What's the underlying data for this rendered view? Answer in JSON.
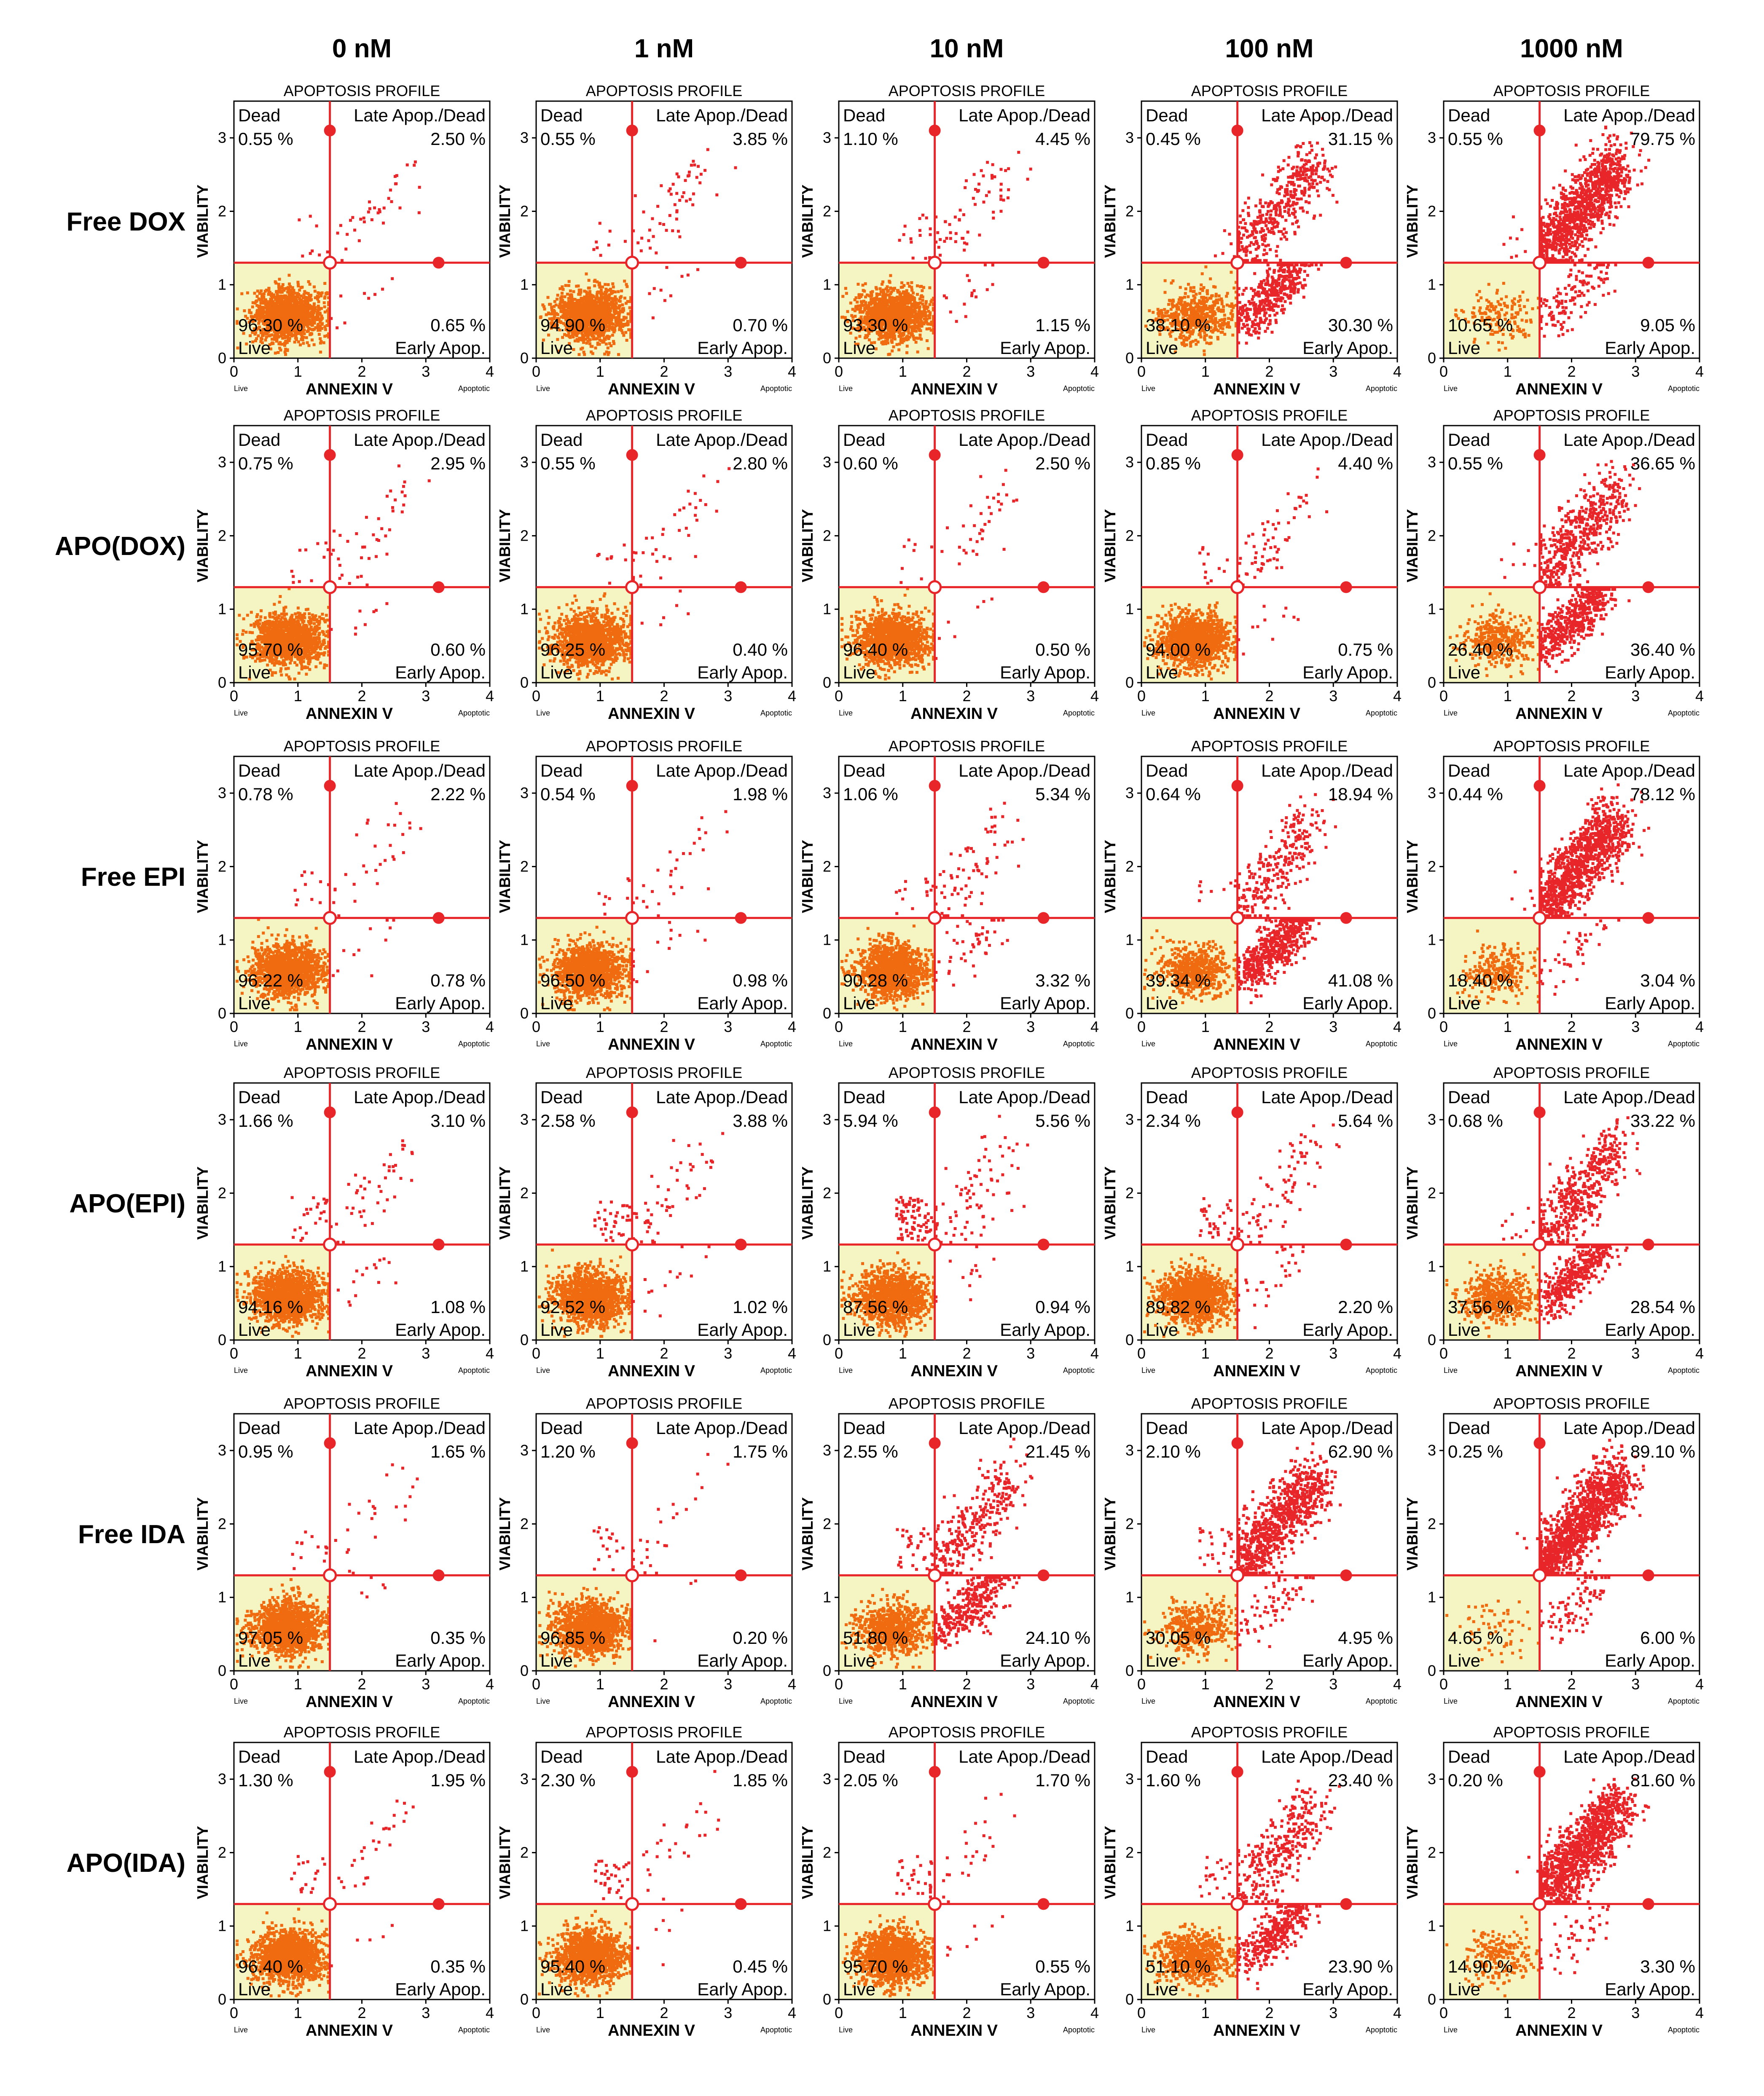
{
  "figure": {
    "columns": [
      "0 nM",
      "1 nM",
      "10 nM",
      "100 nM",
      "1000 nM"
    ],
    "rows": [
      "Free DOX",
      "APO(DOX)",
      "Free EPI",
      "APO(EPI)",
      "Free IDA",
      "APO(IDA)"
    ]
  },
  "panel_text": {
    "title": "APOPTOSIS PROFILE",
    "xlabel": "ANNEXIN V",
    "ylabel": "VIABILITY",
    "x_min_label": "Live",
    "x_max_label": "Apoptotic",
    "x_ticks": [
      "0",
      "1",
      "2",
      "3",
      "4"
    ],
    "y_ticks": [
      "0",
      "1",
      "2",
      "3"
    ],
    "q_dead": "Dead",
    "q_late": "Late Apop./Dead",
    "q_live": "Live",
    "q_early": "Early Apop."
  },
  "colors": {
    "gate": "#e8262a",
    "live_fill": "#f4f5c2",
    "dot": "#e8262a",
    "dense_dot": "#f06a10"
  },
  "chart_data": {
    "type": "scatter",
    "description_of_values": "Each panel is an Annexin V vs viability flow-cytometry dot plot; quadrant percentages printed on the plot.",
    "xlim": [
      0,
      4
    ],
    "ylim": [
      0,
      3.5
    ],
    "gates": {
      "annexin_v": 1.5,
      "viability": 1.3
    },
    "panels": [
      {
        "row": "Free DOX",
        "conc": "0 nM",
        "dead": "0.55 %",
        "late": "2.50 %",
        "live": "96.30 %",
        "early": "0.65 %"
      },
      {
        "row": "Free DOX",
        "conc": "1 nM",
        "dead": "0.55 %",
        "late": "3.85 %",
        "live": "94.90 %",
        "early": "0.70 %"
      },
      {
        "row": "Free DOX",
        "conc": "10 nM",
        "dead": "1.10 %",
        "late": "4.45 %",
        "live": "93.30 %",
        "early": "1.15 %"
      },
      {
        "row": "Free DOX",
        "conc": "100 nM",
        "dead": "0.45 %",
        "late": "31.15 %",
        "live": "38.10 %",
        "early": "30.30 %"
      },
      {
        "row": "Free DOX",
        "conc": "1000 nM",
        "dead": "0.55 %",
        "late": "79.75 %",
        "live": "10.65 %",
        "early": "9.05 %"
      },
      {
        "row": "APO(DOX)",
        "conc": "0 nM",
        "dead": "0.75 %",
        "late": "2.95 %",
        "live": "95.70 %",
        "early": "0.60 %"
      },
      {
        "row": "APO(DOX)",
        "conc": "1 nM",
        "dead": "0.55 %",
        "late": "2.80 %",
        "live": "96.25 %",
        "early": "0.40 %"
      },
      {
        "row": "APO(DOX)",
        "conc": "10 nM",
        "dead": "0.60 %",
        "late": "2.50 %",
        "live": "96.40 %",
        "early": "0.50 %"
      },
      {
        "row": "APO(DOX)",
        "conc": "100 nM",
        "dead": "0.85 %",
        "late": "4.40 %",
        "live": "94.00 %",
        "early": "0.75 %"
      },
      {
        "row": "APO(DOX)",
        "conc": "1000 nM",
        "dead": "0.55 %",
        "late": "36.65 %",
        "live": "26.40 %",
        "early": "36.40 %"
      },
      {
        "row": "Free EPI",
        "conc": "0 nM",
        "dead": "0.78 %",
        "late": "2.22 %",
        "live": "96.22 %",
        "early": "0.78 %"
      },
      {
        "row": "Free EPI",
        "conc": "1 nM",
        "dead": "0.54 %",
        "late": "1.98 %",
        "live": "96.50 %",
        "early": "0.98 %"
      },
      {
        "row": "Free EPI",
        "conc": "10 nM",
        "dead": "1.06 %",
        "late": "5.34 %",
        "live": "90.28 %",
        "early": "3.32 %"
      },
      {
        "row": "Free EPI",
        "conc": "100 nM",
        "dead": "0.64 %",
        "late": "18.94 %",
        "live": "39.34 %",
        "early": "41.08 %"
      },
      {
        "row": "Free EPI",
        "conc": "1000 nM",
        "dead": "0.44 %",
        "late": "78.12 %",
        "live": "18.40 %",
        "early": "3.04 %"
      },
      {
        "row": "APO(EPI)",
        "conc": "0 nM",
        "dead": "1.66 %",
        "late": "3.10 %",
        "live": "94.16 %",
        "early": "1.08 %"
      },
      {
        "row": "APO(EPI)",
        "conc": "1 nM",
        "dead": "2.58 %",
        "late": "3.88 %",
        "live": "92.52 %",
        "early": "1.02 %"
      },
      {
        "row": "APO(EPI)",
        "conc": "10 nM",
        "dead": "5.94 %",
        "late": "5.56 %",
        "live": "87.56 %",
        "early": "0.94 %"
      },
      {
        "row": "APO(EPI)",
        "conc": "100 nM",
        "dead": "2.34 %",
        "late": "5.64 %",
        "live": "89.82 %",
        "early": "2.20 %"
      },
      {
        "row": "APO(EPI)",
        "conc": "1000 nM",
        "dead": "0.68 %",
        "late": "33.22 %",
        "live": "37.56 %",
        "early": "28.54 %"
      },
      {
        "row": "Free IDA",
        "conc": "0 nM",
        "dead": "0.95 %",
        "late": "1.65 %",
        "live": "97.05 %",
        "early": "0.35 %"
      },
      {
        "row": "Free IDA",
        "conc": "1 nM",
        "dead": "1.20 %",
        "late": "1.75 %",
        "live": "96.85 %",
        "early": "0.20 %"
      },
      {
        "row": "Free IDA",
        "conc": "10 nM",
        "dead": "2.55 %",
        "late": "21.45 %",
        "live": "51.80 %",
        "early": "24.10 %"
      },
      {
        "row": "Free IDA",
        "conc": "100 nM",
        "dead": "2.10 %",
        "late": "62.90 %",
        "live": "30.05 %",
        "early": "4.95 %"
      },
      {
        "row": "Free IDA",
        "conc": "1000 nM",
        "dead": "0.25 %",
        "late": "89.10 %",
        "live": "4.65 %",
        "early": "6.00 %"
      },
      {
        "row": "APO(IDA)",
        "conc": "0 nM",
        "dead": "1.30 %",
        "late": "1.95 %",
        "live": "96.40 %",
        "early": "0.35 %"
      },
      {
        "row": "APO(IDA)",
        "conc": "1 nM",
        "dead": "2.30 %",
        "late": "1.85 %",
        "live": "95.40 %",
        "early": "0.45 %"
      },
      {
        "row": "APO(IDA)",
        "conc": "10 nM",
        "dead": "2.05 %",
        "late": "1.70 %",
        "live": "95.70 %",
        "early": "0.55 %"
      },
      {
        "row": "APO(IDA)",
        "conc": "100 nM",
        "dead": "1.60 %",
        "late": "23.40 %",
        "live": "51.10 %",
        "early": "23.90 %"
      },
      {
        "row": "APO(IDA)",
        "conc": "1000 nM",
        "dead": "0.20 %",
        "late": "81.60 %",
        "live": "14.90 %",
        "early": "3.30 %"
      }
    ]
  }
}
